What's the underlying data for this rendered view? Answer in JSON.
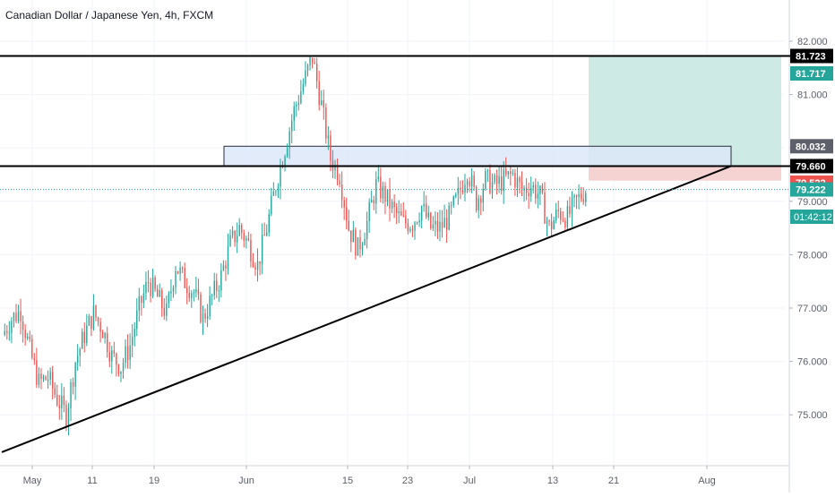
{
  "header": {
    "title": "Canadian Dollar / Japanese Yen, 4h, FXCM"
  },
  "colors": {
    "up": "#26a69a",
    "down": "#ef5350",
    "line": "#000000",
    "zone_fill": "#dce8f9",
    "zone_border": "#2a2e39",
    "target_fill": "#cdeae4",
    "stop_fill": "#f6d3d3",
    "price_line": "#26a69a",
    "axis_text": "#5d606b"
  },
  "chart_data": {
    "type": "candlestick",
    "symbol": "Canadian Dollar / Japanese Yen, 4h, FXCM",
    "x_ticks": [
      "May",
      "11",
      "19",
      "Jun",
      "15",
      "23",
      "Jul",
      "13",
      "21",
      "Aug"
    ],
    "y_ticks": [
      "82.000",
      "81.000",
      "80.000",
      "79.000",
      "78.000",
      "77.000",
      "76.000",
      "75.000"
    ],
    "ylim": [
      74.25,
      82.5
    ],
    "price_labels": [
      {
        "value": 81.723,
        "text": "81.723",
        "style": "black"
      },
      {
        "value": 81.717,
        "text": "81.717",
        "style": "green"
      },
      {
        "value": 80.032,
        "text": "80.032",
        "style": "gray"
      },
      {
        "value": 79.66,
        "text": "79.660",
        "style": "black"
      },
      {
        "value": 79.522,
        "text": "79.522",
        "style": "red"
      },
      {
        "value": 79.222,
        "text": "79.222",
        "style": "green"
      }
    ],
    "countdown": "01:42:12",
    "last_price": 79.222,
    "closes": [
      76.5,
      76.8,
      76.95,
      76.2,
      75.6,
      75.7,
      75.3,
      75.0,
      76.0,
      76.5,
      76.9,
      76.6,
      76.1,
      75.9,
      76.3,
      77.0,
      77.5,
      77.2,
      76.9,
      77.8,
      77.5,
      77.3,
      76.8,
      77.2,
      77.6,
      78.2,
      78.5,
      78.2,
      77.8,
      78.5,
      79.3,
      80.0,
      80.7,
      81.2,
      81.7,
      80.8,
      79.8,
      79.5,
      78.5,
      78.1,
      78.6,
      79.3,
      79.1,
      78.8,
      78.6,
      78.6,
      78.9,
      78.5,
      78.5,
      78.7,
      79.1,
      79.6,
      79.0,
      79.4,
      79.3,
      79.4,
      79.5,
      79.2,
      79.3,
      79.1,
      78.5,
      78.8,
      78.7,
      79.0,
      79.222
    ],
    "trendlines": [
      {
        "name": "resistance-81.723",
        "points": [
          [
            "start",
            81.723
          ],
          [
            "end",
            81.723
          ]
        ]
      },
      {
        "name": "resistance-79.660",
        "points": [
          [
            "start",
            79.66
          ],
          [
            "end",
            79.66
          ]
        ]
      },
      {
        "name": "ascending-support",
        "points": [
          [
            "start",
            74.3
          ],
          [
            "Aug",
            79.66
          ]
        ]
      }
    ],
    "zone": {
      "top": 80.032,
      "bottom": 79.66
    },
    "position": {
      "entry": 79.66,
      "target": 81.717,
      "stop": 79.522
    }
  }
}
